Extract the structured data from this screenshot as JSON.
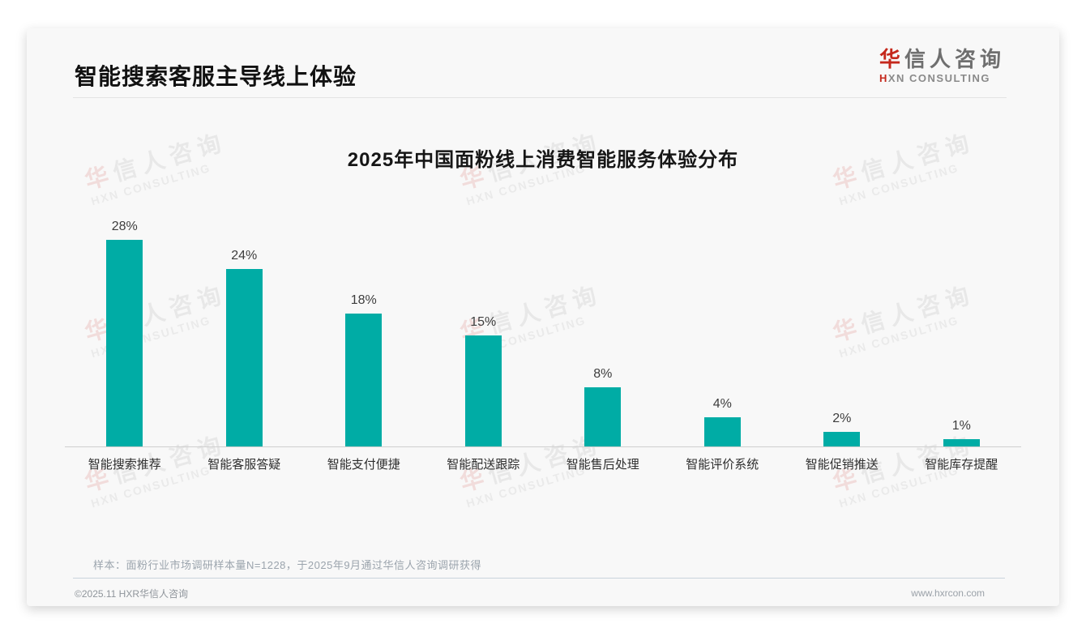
{
  "header": {
    "title": "智能搜索客服主导线上体验"
  },
  "logo": {
    "zh_accent": "华",
    "zh_rest": "信人咨询",
    "en_accent": "H",
    "en_rest": "XN CONSULTING"
  },
  "watermark": {
    "zh_accent": "华",
    "zh_rest": "信人咨询",
    "en": "HXN CONSULTING"
  },
  "chart_data": {
    "type": "bar",
    "title": "2025年中国面粉线上消费智能服务体验分布",
    "categories": [
      "智能搜索推荐",
      "智能客服答疑",
      "智能支付便捷",
      "智能配送跟踪",
      "智能售后处理",
      "智能评价系统",
      "智能促销推送",
      "智能库存提醒"
    ],
    "values": [
      28,
      24,
      18,
      15,
      8,
      4,
      2,
      1
    ],
    "value_labels": [
      "28%",
      "24%",
      "18%",
      "15%",
      "8%",
      "4%",
      "2%",
      "1%"
    ],
    "unit": "%",
    "bar_color": "#00ACA5",
    "xlabel": "",
    "ylabel": "",
    "ylim": [
      0,
      28
    ],
    "grid": false,
    "legend": false
  },
  "footnote": "样本：面粉行业市场调研样本量N=1228，于2025年9月通过华信人咨询调研获得",
  "footer": {
    "left": "©2025.11 HXR华信人咨询",
    "right": "www.hxrcon.com"
  },
  "colors": {
    "bar": "#00ACA5",
    "logo_accent": "#C5281C",
    "card_bg": "#F8F8F8"
  }
}
